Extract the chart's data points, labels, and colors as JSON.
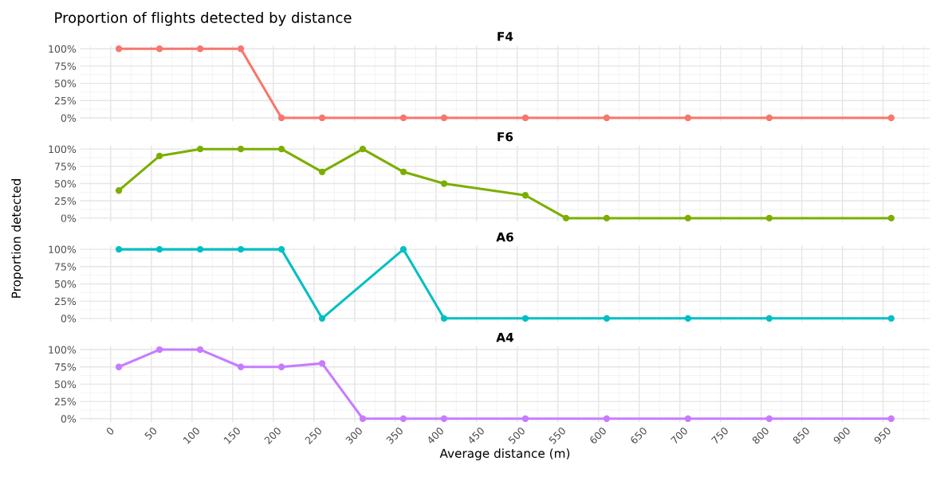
{
  "chart_data": [
    {
      "type": "line",
      "title": "F4",
      "annotations": [
        "Proportion of flights detected by distance"
      ],
      "marker": "circle",
      "grid": true,
      "tick_labels": "y",
      "x": [
        10,
        60,
        110,
        160,
        210,
        260,
        360,
        410,
        510,
        610,
        710,
        810,
        960
      ],
      "series": [
        {
          "color": "#f8766d",
          "values": [
            100,
            100,
            100,
            100,
            0,
            0,
            0,
            0,
            0,
            0,
            0,
            0,
            0
          ]
        }
      ],
      "xlim": [
        -37.5,
        1007.5
      ],
      "ylim": [
        -5,
        105
      ],
      "yticks": [
        {
          "value": 0,
          "label": "0%"
        },
        {
          "value": 25,
          "label": "25%"
        },
        {
          "value": 50,
          "label": "50%"
        },
        {
          "value": 75,
          "label": "75%"
        },
        {
          "value": 100,
          "label": "100%"
        }
      ]
    },
    {
      "type": "line",
      "title": "F6",
      "marker": "circle",
      "grid": true,
      "tick_labels": "y",
      "x": [
        10,
        60,
        110,
        160,
        210,
        260,
        310,
        360,
        410,
        510,
        560,
        610,
        710,
        810,
        960
      ],
      "series": [
        {
          "color": "#7cae00",
          "values": [
            40,
            90,
            100,
            100,
            100,
            67,
            100,
            67,
            50,
            33,
            0,
            0,
            0,
            0,
            0
          ]
        }
      ],
      "xlim": [
        -37.5,
        1007.5
      ],
      "ylim": [
        -5,
        105
      ],
      "yticks": [
        {
          "value": 0,
          "label": "0%"
        },
        {
          "value": 25,
          "label": "25%"
        },
        {
          "value": 50,
          "label": "50%"
        },
        {
          "value": 75,
          "label": "75%"
        },
        {
          "value": 100,
          "label": "100%"
        }
      ]
    },
    {
      "type": "line",
      "title": "A6",
      "ylabel": "Proportion detected",
      "marker": "circle",
      "grid": true,
      "tick_labels": "y",
      "x": [
        10,
        60,
        110,
        160,
        210,
        260,
        360,
        410,
        510,
        610,
        710,
        810,
        960
      ],
      "series": [
        {
          "color": "#00bfc4",
          "values": [
            100,
            100,
            100,
            100,
            100,
            0,
            100,
            0,
            0,
            0,
            0,
            0,
            0
          ]
        }
      ],
      "xlim": [
        -37.5,
        1007.5
      ],
      "ylim": [
        -5,
        105
      ],
      "yticks": [
        {
          "value": 0,
          "label": "0%"
        },
        {
          "value": 25,
          "label": "25%"
        },
        {
          "value": 50,
          "label": "50%"
        },
        {
          "value": 75,
          "label": "75%"
        },
        {
          "value": 100,
          "label": "100%"
        }
      ]
    },
    {
      "type": "line",
      "title": "A4",
      "xlabel": "Average distance (m)",
      "marker": "circle",
      "grid": true,
      "x": [
        10,
        60,
        110,
        160,
        210,
        260,
        310,
        360,
        410,
        510,
        610,
        710,
        810,
        960
      ],
      "series": [
        {
          "color": "#c77cff",
          "values": [
            75,
            100,
            100,
            75,
            75,
            80,
            0,
            0,
            0,
            0,
            0,
            0,
            0,
            0
          ]
        }
      ],
      "xlim": [
        -37.5,
        1007.5
      ],
      "xticks": [
        0,
        50,
        100,
        150,
        200,
        250,
        300,
        350,
        400,
        450,
        500,
        550,
        600,
        650,
        700,
        750,
        800,
        850,
        900,
        950
      ],
      "ylim": [
        -5,
        105
      ],
      "yticks": [
        {
          "value": 0,
          "label": "0%"
        },
        {
          "value": 25,
          "label": "25%"
        },
        {
          "value": 50,
          "label": "50%"
        },
        {
          "value": 75,
          "label": "75%"
        },
        {
          "value": 100,
          "label": "100%"
        }
      ]
    }
  ]
}
